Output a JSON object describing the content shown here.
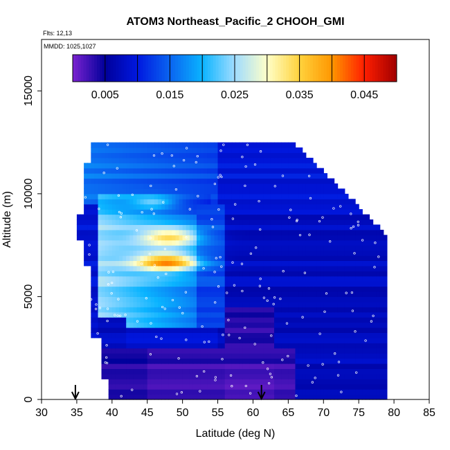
{
  "chart_data": {
    "type": "heatmap",
    "title": "ATOM3 Northeast_Pacific_2 CHOOH_GMI",
    "annotations": [
      "Flts: 12,13",
      "MMDD: 1025,1027"
    ],
    "xlabel": "Latitude (deg N)",
    "ylabel": "Altitude (m)",
    "xlim": [
      30,
      85
    ],
    "ylim": [
      0,
      17500
    ],
    "x_ticks": [
      30,
      35,
      40,
      45,
      50,
      55,
      60,
      65,
      70,
      75,
      80,
      85
    ],
    "y_ticks": [
      0,
      5000,
      10000,
      15000
    ],
    "grid": false,
    "colorbar": {
      "placement": "top",
      "range": [
        0.0,
        0.05
      ],
      "tick_values": [
        0.005,
        0.015,
        0.025,
        0.035,
        0.045
      ],
      "tick_labels": [
        "0.005",
        "0.015",
        "0.025",
        "0.035",
        "0.045"
      ],
      "boundaries": [
        0.0,
        0.005,
        0.01,
        0.015,
        0.02,
        0.025,
        0.03,
        0.035,
        0.04,
        0.045,
        0.05
      ],
      "colors": [
        "#7b22d0",
        "#00009a",
        "#0018e0",
        "#0a64f0",
        "#0ab4ff",
        "#9fdcff",
        "#ffffc8",
        "#ffd23c",
        "#ff9600",
        "#ff1e00",
        "#a00000"
      ]
    },
    "markers": [
      {
        "type": "arrow-down",
        "x": 34.8
      },
      {
        "type": "arrow-down",
        "x": 61.2
      }
    ],
    "field": {
      "description": "CHOOH mixing ratio curtain along flight track",
      "lat_range": [
        35,
        80
      ],
      "alt_range": [
        0,
        12500
      ],
      "high_region": {
        "lat": [
          38,
          54
        ],
        "alt": [
          3500,
          10000
        ],
        "value": 0.025
      },
      "peaks": [
        {
          "lat": 48,
          "alt": 6700,
          "value": 0.046
        },
        {
          "lat": 48.5,
          "alt": 7900,
          "value": 0.041
        }
      ],
      "low_region": {
        "lat": [
          38,
          66
        ],
        "alt": [
          0,
          2500
        ],
        "value": 0.003
      }
    }
  }
}
